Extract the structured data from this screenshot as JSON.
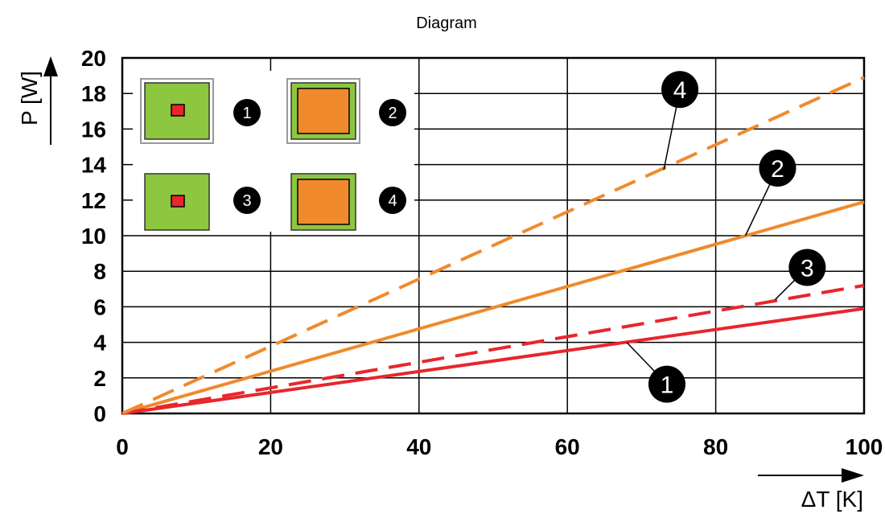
{
  "chart_data": {
    "type": "line",
    "title": "Diagram",
    "xlabel": "ΔT [K]",
    "ylabel": "P [W]",
    "xlim": [
      0,
      100
    ],
    "ylim": [
      0,
      20
    ],
    "x_ticks": [
      0,
      20,
      40,
      60,
      80,
      100
    ],
    "y_ticks": [
      0,
      2,
      4,
      6,
      8,
      10,
      12,
      14,
      16,
      18,
      20
    ],
    "grid": true,
    "series": [
      {
        "name": "1",
        "style": "solid",
        "color": "#e8262c",
        "x": [
          0,
          100
        ],
        "y": [
          0,
          5.9
        ]
      },
      {
        "name": "2",
        "style": "solid",
        "color": "#f08a2c",
        "x": [
          0,
          100
        ],
        "y": [
          0,
          11.9
        ]
      },
      {
        "name": "3",
        "style": "dashed",
        "color": "#e8262c",
        "x": [
          0,
          100
        ],
        "y": [
          0,
          7.2
        ]
      },
      {
        "name": "4",
        "style": "dashed",
        "color": "#f08a2c",
        "x": [
          0,
          100
        ],
        "y": [
          0,
          18.9
        ]
      }
    ],
    "legend": {
      "position": "top-left",
      "items": [
        {
          "label": "1",
          "outline": true,
          "fill": "#8dc63f",
          "chip": "#e8262c",
          "chip_size": "small"
        },
        {
          "label": "2",
          "outline": true,
          "fill": "#8dc63f",
          "chip": "#f08a2c",
          "chip_size": "large"
        },
        {
          "label": "3",
          "outline": false,
          "fill": "#8dc63f",
          "chip": "#e8262c",
          "chip_size": "small"
        },
        {
          "label": "4",
          "outline": false,
          "fill": "#8dc63f",
          "chip": "#f08a2c",
          "chip_size": "large"
        }
      ]
    },
    "annotations": [
      {
        "label": "1",
        "at": [
          68,
          4.0
        ]
      },
      {
        "label": "2",
        "at": [
          84,
          10.0
        ]
      },
      {
        "label": "3",
        "at": [
          88,
          6.4
        ]
      },
      {
        "label": "4",
        "at": [
          73,
          13.7
        ]
      }
    ]
  }
}
